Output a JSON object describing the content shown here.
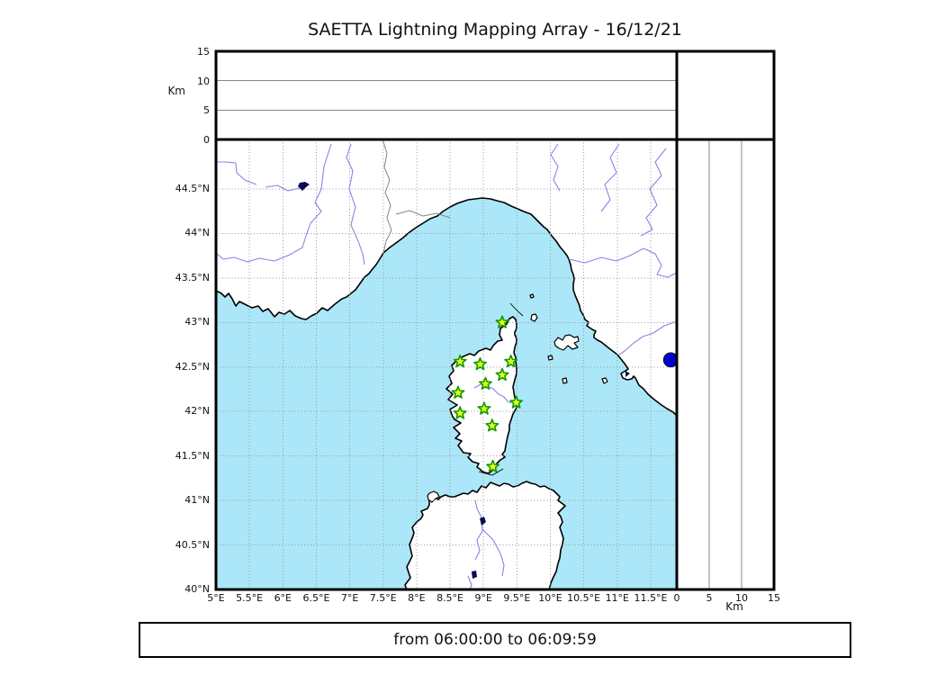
{
  "title": "SAETTA Lightning Mapping Array - 16/12/21",
  "footer": {
    "time_range": "from 06:00:00 to 06:09:59"
  },
  "axes": {
    "altitude": {
      "label": "Km",
      "tick_labels": [
        "0",
        "5",
        "10",
        "15"
      ],
      "tick_values": [
        0,
        5,
        10,
        15
      ],
      "gridlines_km": [
        5,
        10
      ],
      "max_km": 15
    },
    "longitude": {
      "tick_labels": [
        "5°E",
        "5.5°E",
        "6°E",
        "6.5°E",
        "7°E",
        "7.5°E",
        "8°E",
        "8.5°E",
        "9°E",
        "9.5°E",
        "10°E",
        "10.5°E",
        "11°E",
        "11.5°E"
      ],
      "tick_values": [
        5,
        5.5,
        6,
        6.5,
        7,
        7.5,
        8,
        8.5,
        9,
        9.5,
        10,
        10.5,
        11,
        11.5
      ],
      "min": 5
    },
    "latitude": {
      "tick_labels": [
        "40°N",
        "40.5°N",
        "41°N",
        "41.5°N",
        "42°N",
        "42.5°N",
        "43°N",
        "43.5°N",
        "44°N",
        "44.5°N"
      ],
      "tick_values": [
        40,
        40.5,
        41,
        41.5,
        42,
        42.5,
        43,
        43.5,
        44,
        44.5
      ],
      "min": 40
    }
  },
  "stations": [
    {
      "lon": 9.28,
      "lat": 43.0
    },
    {
      "lon": 8.65,
      "lat": 42.56
    },
    {
      "lon": 8.95,
      "lat": 42.53
    },
    {
      "lon": 9.41,
      "lat": 42.56
    },
    {
      "lon": 9.28,
      "lat": 42.41
    },
    {
      "lon": 9.03,
      "lat": 42.31
    },
    {
      "lon": 8.62,
      "lat": 42.21
    },
    {
      "lon": 9.49,
      "lat": 42.1
    },
    {
      "lon": 9.01,
      "lat": 42.03
    },
    {
      "lon": 8.65,
      "lat": 41.98
    },
    {
      "lon": 9.13,
      "lat": 41.84
    },
    {
      "lon": 9.14,
      "lat": 41.38
    }
  ],
  "events": [
    {
      "lon": 11.8,
      "lat": 42.58
    }
  ],
  "colors": {
    "sea": "#abe7f8",
    "land": "#ffffff",
    "coastline": "#000000",
    "grid": "#999999",
    "river": "#8585e8",
    "lake": "#0b0b55",
    "country_border": "#858585",
    "station_fill": "#f4ff1e",
    "station_stroke": "#0c9a00",
    "event": "#0000cc"
  }
}
